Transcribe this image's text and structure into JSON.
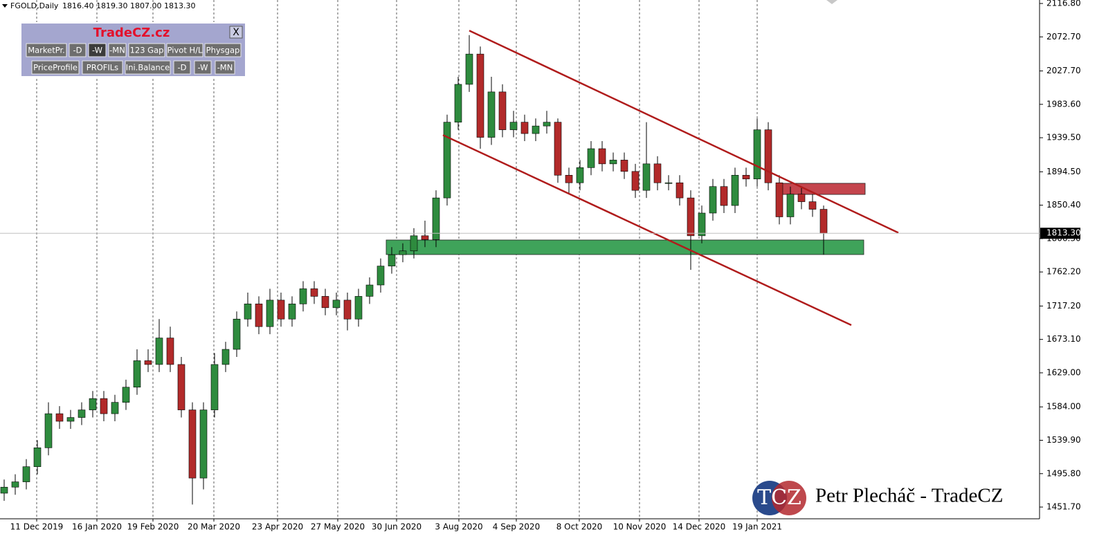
{
  "header": {
    "symbol": "FGOLD,Daily",
    "ohlc": "1816.40 1819.30 1807.00 1813.30"
  },
  "panel": {
    "title": "TradeCZ.cz",
    "close": "X",
    "row1": [
      "MarketPr.",
      "-D",
      "-W",
      "-MN",
      "123 Gap",
      "Pivot H/L",
      "Physgap"
    ],
    "row2": [
      "PriceProfile",
      "PROFILs",
      "Ini.Balance",
      "-D",
      "-W",
      "-MN"
    ]
  },
  "watermark": {
    "logo": "TCZ",
    "text": "Petr Plecháč - TradeCZ"
  },
  "chart_data": {
    "type": "candlestick",
    "up_color": "#2e8b3e",
    "down_color": "#b22a2a",
    "wick_color": "#000000",
    "x": [
      1,
      5,
      9,
      13,
      17,
      21,
      25,
      29,
      33,
      37,
      41,
      45,
      49,
      53,
      57,
      61,
      65,
      69,
      73,
      77,
      81,
      85,
      89,
      93,
      97,
      101,
      105,
      109,
      113,
      117,
      121,
      125,
      129,
      133,
      137,
      141,
      145,
      149,
      153,
      157,
      161,
      165,
      169,
      173,
      177,
      181,
      185,
      189,
      193,
      197,
      201,
      205,
      209,
      213,
      217,
      221,
      225,
      229,
      233,
      237,
      241,
      245,
      249,
      253,
      257,
      261,
      265,
      269,
      273,
      277,
      281,
      285,
      289,
      293,
      297
    ],
    "open": [
      1470,
      1478,
      1485,
      1505,
      1530,
      1575,
      1565,
      1570,
      1580,
      1595,
      1575,
      1590,
      1610,
      1645,
      1640,
      1675,
      1640,
      1580,
      1490,
      1580,
      1640,
      1660,
      1700,
      1720,
      1690,
      1725,
      1700,
      1720,
      1740,
      1730,
      1715,
      1725,
      1700,
      1730,
      1745,
      1770,
      1785,
      1790,
      1810,
      1805,
      1860,
      1960,
      2010,
      2050,
      1940,
      2000,
      1950,
      1960,
      1945,
      1955,
      1960,
      1890,
      1880,
      1900,
      1925,
      1905,
      1910,
      1895,
      1870,
      1905,
      1880,
      1880,
      1860,
      1810,
      1840,
      1875,
      1850,
      1890,
      1885,
      1950,
      1880,
      1835,
      1865,
      1855,
      1845
    ],
    "high": [
      1488,
      1495,
      1515,
      1540,
      1590,
      1585,
      1580,
      1590,
      1605,
      1605,
      1600,
      1620,
      1660,
      1660,
      1700,
      1690,
      1650,
      1590,
      1590,
      1655,
      1670,
      1710,
      1735,
      1730,
      1740,
      1735,
      1730,
      1750,
      1750,
      1740,
      1735,
      1735,
      1740,
      1755,
      1780,
      1795,
      1800,
      1820,
      1830,
      1870,
      1970,
      2020,
      2075,
      2060,
      2020,
      2010,
      1975,
      1970,
      1965,
      1975,
      1965,
      1900,
      1910,
      1935,
      1935,
      1920,
      1920,
      1905,
      1960,
      1915,
      1890,
      1890,
      1870,
      1850,
      1885,
      1885,
      1900,
      1900,
      1965,
      1960,
      1890,
      1875,
      1875,
      1865,
      1850
    ],
    "low": [
      1460,
      1468,
      1475,
      1495,
      1520,
      1555,
      1555,
      1560,
      1570,
      1565,
      1565,
      1580,
      1600,
      1630,
      1630,
      1630,
      1570,
      1455,
      1475,
      1570,
      1630,
      1650,
      1690,
      1680,
      1680,
      1690,
      1690,
      1710,
      1720,
      1705,
      1705,
      1685,
      1690,
      1720,
      1735,
      1760,
      1775,
      1780,
      1795,
      1795,
      1850,
      1950,
      2000,
      1925,
      1930,
      1940,
      1940,
      1935,
      1935,
      1945,
      1880,
      1865,
      1870,
      1890,
      1895,
      1895,
      1885,
      1860,
      1860,
      1870,
      1870,
      1850,
      1765,
      1800,
      1830,
      1840,
      1840,
      1875,
      1875,
      1870,
      1825,
      1825,
      1845,
      1835,
      1785
    ],
    "close": [
      1478,
      1485,
      1505,
      1530,
      1575,
      1565,
      1570,
      1580,
      1595,
      1575,
      1590,
      1610,
      1645,
      1640,
      1675,
      1640,
      1580,
      1490,
      1580,
      1640,
      1660,
      1700,
      1720,
      1690,
      1725,
      1700,
      1720,
      1740,
      1730,
      1715,
      1725,
      1700,
      1730,
      1745,
      1770,
      1785,
      1790,
      1810,
      1805,
      1860,
      1960,
      2010,
      2050,
      1940,
      2000,
      1950,
      1960,
      1945,
      1955,
      1960,
      1890,
      1880,
      1900,
      1925,
      1905,
      1910,
      1895,
      1870,
      1905,
      1880,
      1880,
      1860,
      1810,
      1840,
      1875,
      1850,
      1890,
      1885,
      1950,
      1880,
      1835,
      1865,
      1855,
      1845,
      1813.3
    ],
    "xlim": [
      -0.5,
      374.5
    ],
    "xticks": [
      {
        "value": 12.75,
        "label": "11 Dec 2019"
      },
      {
        "value": 34.5,
        "label": "16 Jan 2020"
      },
      {
        "value": 54.75,
        "label": "19 Feb 2020"
      },
      {
        "value": 76.75,
        "label": "20 Mar 2020"
      },
      {
        "value": 99.75,
        "label": "23 Apr 2020"
      },
      {
        "value": 121.5,
        "label": "27 May 2020"
      },
      {
        "value": 142.75,
        "label": "30 Jun 2020"
      },
      {
        "value": 165.25,
        "label": "3 Aug 2020"
      },
      {
        "value": 186,
        "label": "4 Sep 2020"
      },
      {
        "value": 208.75,
        "label": "8 Oct 2020"
      },
      {
        "value": 230.5,
        "label": "10 Nov 2020"
      },
      {
        "value": 252,
        "label": "14 Dec 2020"
      },
      {
        "value": 273,
        "label": "19 Jan 2021"
      }
    ],
    "ylim": [
      1436.2,
      2121.4
    ],
    "yticks": [
      {
        "value": 2116.8,
        "label": "2116.80"
      },
      {
        "value": 2072.7,
        "label": "2072.70"
      },
      {
        "value": 2027.7,
        "label": "2027.70"
      },
      {
        "value": 1983.6,
        "label": "1983.60"
      },
      {
        "value": 1939.5,
        "label": "1939.50"
      },
      {
        "value": 1894.5,
        "label": "1894.50"
      },
      {
        "value": 1850.4,
        "label": "1850.40"
      },
      {
        "value": 1806.3,
        "label": "1806.30"
      },
      {
        "value": 1762.2,
        "label": "1762.20"
      },
      {
        "value": 1717.2,
        "label": "1717.20"
      },
      {
        "value": 1673.1,
        "label": "1673.10"
      },
      {
        "value": 1629,
        "label": "1629.00"
      },
      {
        "value": 1584,
        "label": "1584.00"
      },
      {
        "value": 1539.9,
        "label": "1539.90"
      },
      {
        "value": 1495.8,
        "label": "1495.80"
      },
      {
        "value": 1451.7,
        "label": "1451.70"
      }
    ],
    "price_line": {
      "value": 1813.3,
      "label": "1813.30"
    },
    "trend_lines": [
      {
        "color": "#b01c1c",
        "x": [
          169,
          324
        ],
        "y": [
          2081,
          1814
        ]
      },
      {
        "color": "#b01c1c",
        "x": [
          159.5,
          307
        ],
        "y": [
          1943,
          1692
        ]
      }
    ],
    "zones": [
      {
        "color": "#3fa35a",
        "x": [
          139,
          311.5
        ],
        "y": [
          1804.4,
          1785.2
        ]
      },
      {
        "color": "#c4454d",
        "x": [
          282,
          312
        ],
        "y": [
          1879.3,
          1864.6
        ]
      }
    ]
  }
}
